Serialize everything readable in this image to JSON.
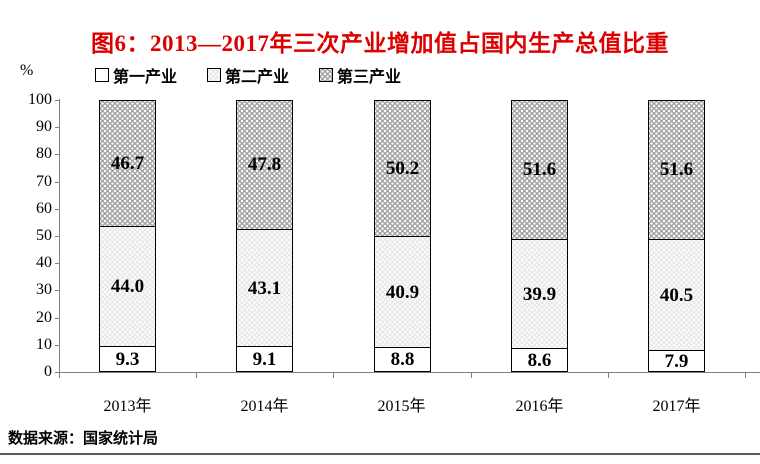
{
  "title": "图6：2013—2017年三次产业增加值占国内生产总值比重",
  "unit_label": "%",
  "source_note": "数据来源：国家统计局",
  "colors": {
    "title_red": "#dd0000",
    "series_first": "#ffffff",
    "series_second": "#e9e9e9",
    "series_third": "#a4a4a4",
    "bar_border": "#000000",
    "axis_gray": "#808080",
    "value_label": "#000000"
  },
  "legend": [
    {
      "label": "第一产业",
      "pattern": "plain-white"
    },
    {
      "label": "第二产业",
      "pattern": "light-dotted"
    },
    {
      "label": "第三产业",
      "pattern": "dark-dotted"
    }
  ],
  "chart_data": {
    "type": "bar",
    "stacked": true,
    "title": "图6：2013—2017年三次产业增加值占国内生产总值比重",
    "categories": [
      "2013年",
      "2014年",
      "2015年",
      "2016年",
      "2017年"
    ],
    "series": [
      {
        "name": "第一产业",
        "values": [
          9.3,
          9.1,
          8.8,
          8.6,
          7.9
        ]
      },
      {
        "name": "第二产业",
        "values": [
          44.0,
          43.1,
          40.9,
          39.9,
          40.5
        ]
      },
      {
        "name": "第三产业",
        "values": [
          46.7,
          47.8,
          50.2,
          51.6,
          51.6
        ]
      }
    ],
    "xlabel": "",
    "ylabel": "%",
    "ylim": [
      0,
      100
    ],
    "ytick_step": 10,
    "grid": false,
    "legend_position": "top",
    "value_label_decimals": 1
  }
}
